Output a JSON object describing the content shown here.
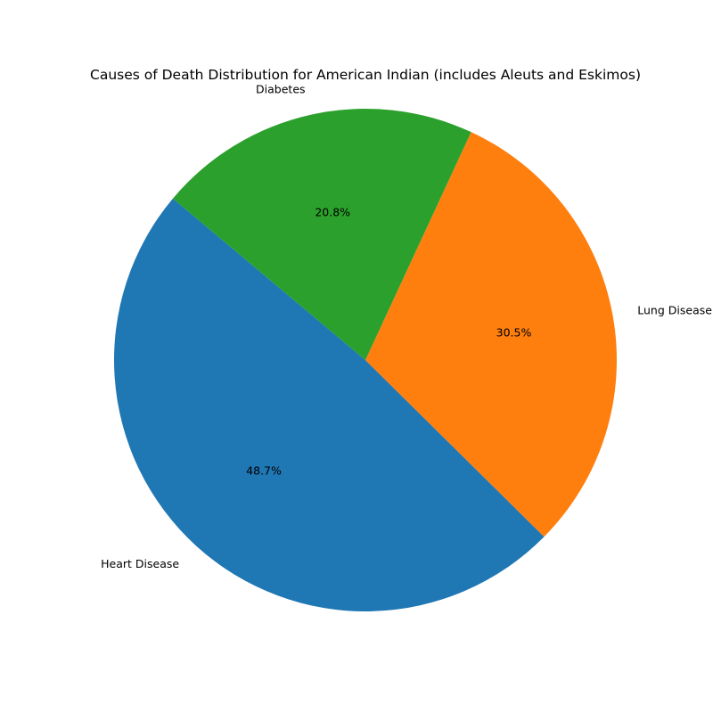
{
  "chart_data": {
    "type": "pie",
    "title": "Causes of Death Distribution for American Indian (includes Aleuts and Eskimos)",
    "slices": [
      {
        "label": "Heart Disease",
        "percent": 48.7,
        "percent_label": "48.7%",
        "color": "#1f77b4"
      },
      {
        "label": "Lung Disease",
        "percent": 30.5,
        "percent_label": "30.5%",
        "color": "#ff7f0e"
      },
      {
        "label": "Diabetes",
        "percent": 20.8,
        "percent_label": "20.8%",
        "color": "#2ca02c"
      }
    ],
    "start_angle_deg": 140,
    "counterclockwise": true
  }
}
